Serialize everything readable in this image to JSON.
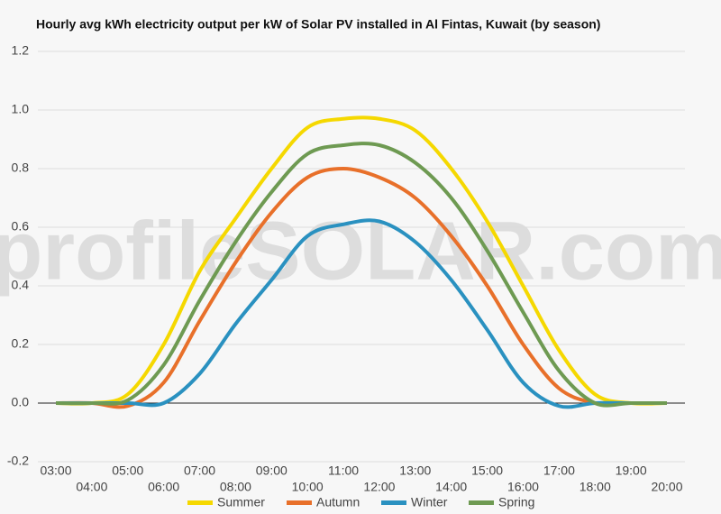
{
  "chart_data": {
    "type": "line",
    "title": "Hourly avg kWh electricity output per kW of Solar PV installed in Al Fintas, Kuwait (by season)",
    "watermark": "profileSOLAR.com",
    "categories": [
      "03:00",
      "04:00",
      "05:00",
      "06:00",
      "07:00",
      "08:00",
      "09:00",
      "10:00",
      "11:00",
      "12:00",
      "13:00",
      "14:00",
      "15:00",
      "16:00",
      "17:00",
      "18:00",
      "19:00",
      "20:00"
    ],
    "series": [
      {
        "name": "Summer",
        "color": "#f5d800",
        "values": [
          0,
          0,
          0.03,
          0.2,
          0.45,
          0.63,
          0.8,
          0.94,
          0.97,
          0.97,
          0.93,
          0.8,
          0.62,
          0.4,
          0.18,
          0.03,
          0,
          0
        ]
      },
      {
        "name": "Autumn",
        "color": "#e8702a",
        "values": [
          0,
          0,
          -0.01,
          0.07,
          0.28,
          0.48,
          0.65,
          0.77,
          0.8,
          0.77,
          0.7,
          0.57,
          0.4,
          0.2,
          0.05,
          0,
          0,
          0
        ]
      },
      {
        "name": "Winter",
        "color": "#2a91c0",
        "values": [
          0,
          0,
          0,
          0,
          0.1,
          0.27,
          0.42,
          0.57,
          0.61,
          0.62,
          0.55,
          0.42,
          0.25,
          0.07,
          -0.01,
          0,
          0,
          0
        ]
      },
      {
        "name": "Spring",
        "color": "#6e9a52",
        "values": [
          0,
          0,
          0.01,
          0.13,
          0.35,
          0.55,
          0.72,
          0.85,
          0.88,
          0.88,
          0.82,
          0.7,
          0.52,
          0.31,
          0.11,
          0,
          0,
          0
        ]
      }
    ],
    "ylim": [
      -0.2,
      1.2
    ],
    "yticks": [
      -0.2,
      0.2,
      {
        "value": 0,
        "label": "0.0"
      },
      0.4,
      0.6,
      0.8,
      {
        "value": 1,
        "label": "1.0"
      },
      1.2
    ],
    "grid": true,
    "legend": "bottom"
  }
}
